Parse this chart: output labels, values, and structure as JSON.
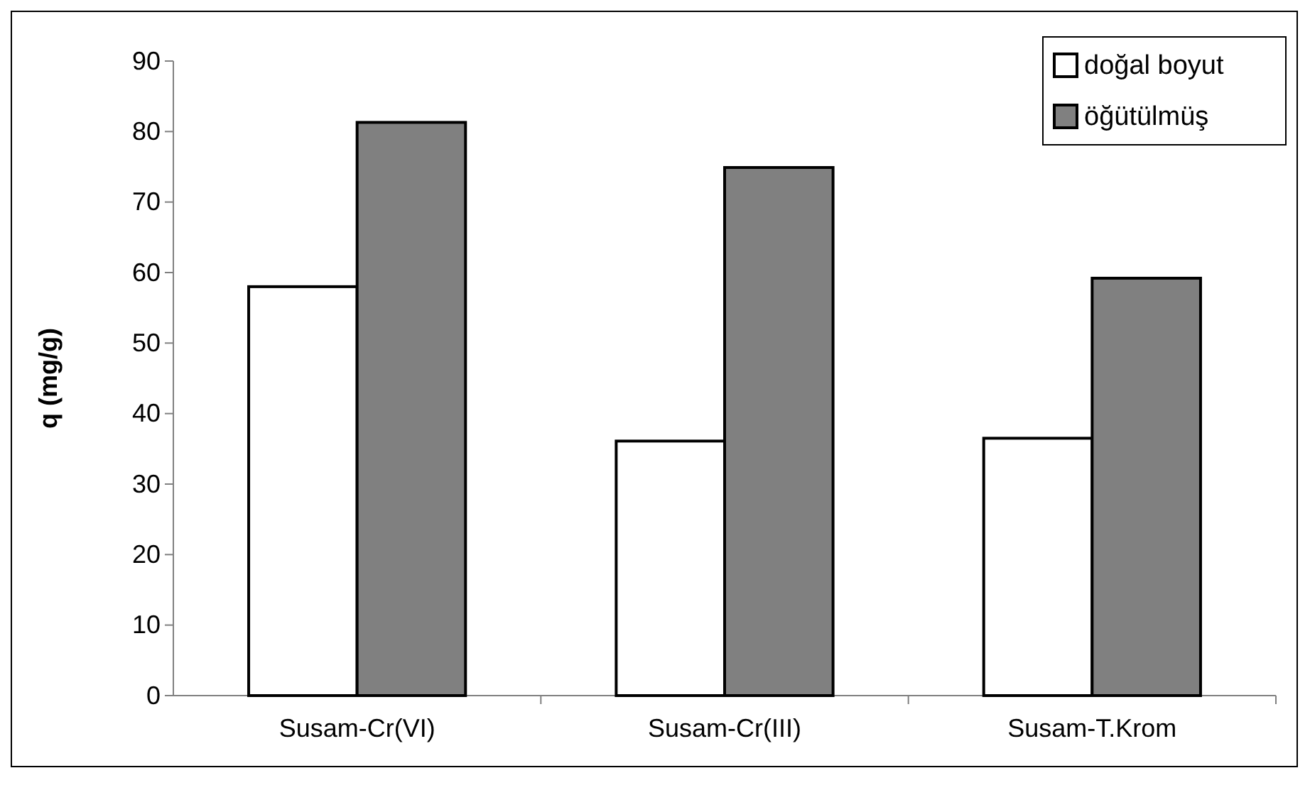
{
  "chart_data": {
    "type": "bar",
    "ylabel": "q (mg/g)",
    "categories": [
      "Susam-Cr(VI)",
      "Susam-Cr(III)",
      "Susam-T.Krom"
    ],
    "series": [
      {
        "name": "doğal boyut",
        "color": "#ffffff",
        "values": [
          58.0,
          36.1,
          36.5
        ]
      },
      {
        "name": "öğütülmüş",
        "color": "#808080",
        "values": [
          81.3,
          74.9,
          59.2
        ]
      }
    ],
    "ylim": [
      0,
      90
    ],
    "yticks": [
      0,
      10,
      20,
      30,
      40,
      50,
      60,
      70,
      80,
      90
    ],
    "grid": false,
    "legend": "top right"
  }
}
